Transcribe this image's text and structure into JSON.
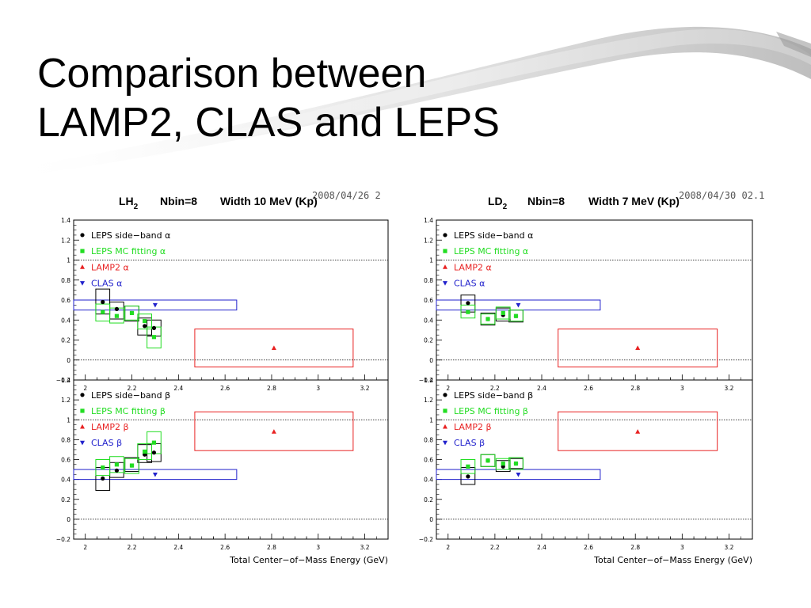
{
  "slide": {
    "title_line1": "Comparison between",
    "title_line2": "LAMP2, CLAS and LEPS"
  },
  "colors": {
    "leps_sideband": "#000000",
    "leps_mc": "#22dd22",
    "lamp2": "#e82222",
    "clas": "#2222cc",
    "frame": "#000000"
  },
  "chart_data": [
    {
      "type": "scatter",
      "target": "LH2",
      "header": {
        "target_main": "LH",
        "target_sub": "2",
        "nbin": "Nbin=8",
        "width": "Width 10 MeV (Kp)",
        "timestamp": "2008/04/26  2"
      },
      "xlabel": "Total Center−of−Mass Energy (GeV)",
      "xlim": [
        1.95,
        3.3
      ],
      "x_ticks": [
        "2",
        "2.2",
        "2.4",
        "2.6",
        "2.8",
        "3",
        "3.2"
      ],
      "panels": [
        {
          "param": "alpha",
          "ylim": [
            -0.2,
            1.4
          ],
          "y_ticks": [
            "−0.2",
            "0",
            "0.2",
            "0.4",
            "0.6",
            "0.8",
            "1",
            "1.2",
            "1.4"
          ],
          "legend": [
            "LEPS side−band α",
            "LEPS MC fitting α",
            "LAMP2 α",
            "CLAS α"
          ],
          "series": [
            {
              "name": "LEPS side−band α",
              "x": [
                2.075,
                2.135,
                2.2,
                2.255,
                2.295
              ],
              "y": [
                0.58,
                0.51,
                0.47,
                0.34,
                0.32
              ],
              "box_ylo": [
                0.46,
                0.41,
                0.39,
                0.25,
                0.24
              ],
              "box_yhi": [
                0.71,
                0.58,
                0.54,
                0.42,
                0.4
              ],
              "box_w": 0.06
            },
            {
              "name": "LEPS MC fitting α",
              "x": [
                2.075,
                2.135,
                2.2,
                2.255,
                2.295
              ],
              "y": [
                0.48,
                0.44,
                0.47,
                0.39,
                0.23
              ],
              "box_ylo": [
                0.39,
                0.37,
                0.4,
                0.31,
                0.12
              ],
              "box_yhi": [
                0.56,
                0.52,
                0.54,
                0.46,
                0.33
              ],
              "box_w": 0.06
            },
            {
              "name": "LAMP2 α",
              "x": [
                2.81
              ],
              "y": [
                0.12
              ],
              "box_xlo": [
                2.47
              ],
              "box_xhi": [
                3.15
              ],
              "box_ylo": [
                -0.07
              ],
              "box_yhi": [
                0.31
              ]
            },
            {
              "name": "CLAS α",
              "x": [
                2.3
              ],
              "y": [
                0.55
              ],
              "box_xlo": [
                1.95
              ],
              "box_xhi": [
                2.65
              ],
              "box_ylo": [
                0.5
              ],
              "box_yhi": [
                0.6
              ]
            }
          ]
        },
        {
          "param": "beta",
          "ylim": [
            -0.2,
            1.4
          ],
          "y_ticks": [
            "−0.2",
            "0",
            "0.2",
            "0.4",
            "0.6",
            "0.8",
            "1",
            "1.2",
            "1.4"
          ],
          "legend": [
            "LEPS side−band β",
            "LEPS MC fitting β",
            "LAMP2 β",
            "CLAS β"
          ],
          "series": [
            {
              "name": "LEPS side−band β",
              "x": [
                2.075,
                2.135,
                2.2,
                2.255,
                2.295
              ],
              "y": [
                0.41,
                0.49,
                0.54,
                0.65,
                0.67
              ],
              "box_ylo": [
                0.29,
                0.42,
                0.48,
                0.57,
                0.58
              ],
              "box_yhi": [
                0.52,
                0.57,
                0.62,
                0.75,
                0.76
              ],
              "box_w": 0.06
            },
            {
              "name": "LEPS MC fitting β",
              "x": [
                2.075,
                2.135,
                2.2,
                2.255,
                2.295
              ],
              "y": [
                0.52,
                0.55,
                0.54,
                0.68,
                0.77
              ],
              "box_ylo": [
                0.44,
                0.47,
                0.46,
                0.6,
                0.66
              ],
              "box_yhi": [
                0.6,
                0.63,
                0.61,
                0.76,
                0.88
              ],
              "box_w": 0.06
            },
            {
              "name": "LAMP2 β",
              "x": [
                2.81
              ],
              "y": [
                0.88
              ],
              "box_xlo": [
                2.47
              ],
              "box_xhi": [
                3.15
              ],
              "box_ylo": [
                0.69
              ],
              "box_yhi": [
                1.08
              ]
            },
            {
              "name": "CLAS β",
              "x": [
                2.3
              ],
              "y": [
                0.45
              ],
              "box_xlo": [
                1.95
              ],
              "box_xhi": [
                2.65
              ],
              "box_ylo": [
                0.4
              ],
              "box_yhi": [
                0.5
              ]
            }
          ]
        }
      ]
    },
    {
      "type": "scatter",
      "target": "LD2",
      "header": {
        "target_main": "LD",
        "target_sub": "2",
        "nbin": "Nbin=8",
        "width": "Width 7 MeV (Kp)",
        "timestamp": "2008/04/30  02.1"
      },
      "xlabel": "Total Center−of−Mass Energy (GeV)",
      "xlim": [
        1.95,
        3.3
      ],
      "x_ticks": [
        "2",
        "2.2",
        "2.4",
        "2.6",
        "2.8",
        "3",
        "3.2"
      ],
      "panels": [
        {
          "param": "alpha",
          "ylim": [
            -0.2,
            1.4
          ],
          "y_ticks": [
            "−0.2",
            "0",
            "0.2",
            "0.4",
            "0.6",
            "0.8",
            "1",
            "1.2",
            "1.4"
          ],
          "legend": [
            "LEPS side−band α",
            "LEPS MC fitting α",
            "LAMP2 α",
            "CLAS α"
          ],
          "series": [
            {
              "name": "LEPS side−band α",
              "x": [
                2.085,
                2.17,
                2.235,
                2.29
              ],
              "y": [
                0.57,
                0.41,
                0.45,
                0.44
              ],
              "box_ylo": [
                0.48,
                0.35,
                0.39,
                0.38
              ],
              "box_yhi": [
                0.65,
                0.47,
                0.52,
                0.5
              ],
              "box_w": 0.06
            },
            {
              "name": "LEPS MC fitting α",
              "x": [
                2.085,
                2.17,
                2.235,
                2.29
              ],
              "y": [
                0.48,
                0.41,
                0.47,
                0.44
              ],
              "box_ylo": [
                0.42,
                0.36,
                0.41,
                0.39
              ],
              "box_yhi": [
                0.55,
                0.46,
                0.53,
                0.5
              ],
              "box_w": 0.06
            },
            {
              "name": "LAMP2 α",
              "x": [
                2.81
              ],
              "y": [
                0.12
              ],
              "box_xlo": [
                2.47
              ],
              "box_xhi": [
                3.15
              ],
              "box_ylo": [
                -0.07
              ],
              "box_yhi": [
                0.31
              ]
            },
            {
              "name": "CLAS α",
              "x": [
                2.3
              ],
              "y": [
                0.55
              ],
              "box_xlo": [
                1.95
              ],
              "box_xhi": [
                2.65
              ],
              "box_ylo": [
                0.5
              ],
              "box_yhi": [
                0.6
              ]
            }
          ]
        },
        {
          "param": "beta",
          "ylim": [
            -0.2,
            1.4
          ],
          "y_ticks": [
            "−0.2",
            "0",
            "0.2",
            "0.4",
            "0.6",
            "0.8",
            "1",
            "1.2",
            "1.4"
          ],
          "legend": [
            "LEPS side−band β",
            "LEPS MC fitting β",
            "LAMP2 β",
            "CLAS β"
          ],
          "series": [
            {
              "name": "LEPS side−band β",
              "x": [
                2.085,
                2.17,
                2.235,
                2.29
              ],
              "y": [
                0.43,
                0.59,
                0.53,
                0.56
              ],
              "box_ylo": [
                0.35,
                0.53,
                0.48,
                0.51
              ],
              "box_yhi": [
                0.52,
                0.65,
                0.59,
                0.61
              ],
              "box_w": 0.06
            },
            {
              "name": "LEPS MC fitting β",
              "x": [
                2.085,
                2.17,
                2.235,
                2.29
              ],
              "y": [
                0.53,
                0.59,
                0.56,
                0.56
              ],
              "box_ylo": [
                0.46,
                0.53,
                0.5,
                0.5
              ],
              "box_yhi": [
                0.6,
                0.65,
                0.61,
                0.62
              ],
              "box_w": 0.06
            },
            {
              "name": "LAMP2 β",
              "x": [
                2.81
              ],
              "y": [
                0.88
              ],
              "box_xlo": [
                2.47
              ],
              "box_xhi": [
                3.15
              ],
              "box_ylo": [
                0.69
              ],
              "box_yhi": [
                1.08
              ]
            },
            {
              "name": "CLAS β",
              "x": [
                2.3
              ],
              "y": [
                0.45
              ],
              "box_xlo": [
                1.95
              ],
              "box_xhi": [
                2.65
              ],
              "box_ylo": [
                0.4
              ],
              "box_yhi": [
                0.5
              ]
            }
          ]
        }
      ]
    }
  ]
}
